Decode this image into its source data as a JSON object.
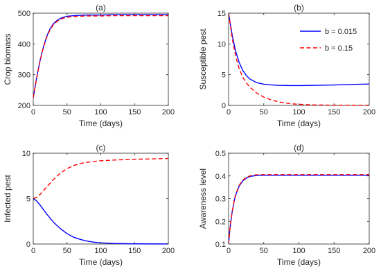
{
  "colors": {
    "series_b1": "#0000ff",
    "series_b2": "#ff0000",
    "axes": "#262626"
  },
  "legend": {
    "items": [
      {
        "label": "b = 0.015",
        "style": "solid"
      },
      {
        "label": "b = 0.15",
        "style": "dashed"
      }
    ],
    "placement": "top-right of panel (b)"
  },
  "chart_data": [
    {
      "type": "line",
      "title": "(a)",
      "xlabel": "Time (days)",
      "ylabel": "Crop biomass",
      "xlim": [
        0,
        200
      ],
      "ylim": [
        200,
        500
      ],
      "xticks": [
        0,
        50,
        100,
        150,
        200
      ],
      "yticks": [
        200,
        300,
        400,
        500
      ],
      "grid": false,
      "series": [
        {
          "style": "solid",
          "color": "#0000ff",
          "x": [
            0,
            5,
            10,
            15,
            20,
            25,
            30,
            35,
            40,
            45,
            50,
            60,
            70,
            80,
            100,
            120,
            150,
            200
          ],
          "y": [
            225,
            290,
            345,
            390,
            425,
            450,
            466,
            476,
            483,
            487,
            490,
            492,
            493,
            494,
            494,
            495,
            495,
            495
          ]
        },
        {
          "style": "dashed",
          "color": "#ff0000",
          "x": [
            0,
            5,
            10,
            15,
            20,
            25,
            30,
            35,
            40,
            45,
            50,
            60,
            70,
            80,
            100,
            120,
            150,
            200
          ],
          "y": [
            225,
            288,
            343,
            388,
            422,
            447,
            463,
            473,
            480,
            484,
            487,
            489,
            490,
            491,
            491,
            492,
            492,
            492
          ]
        }
      ]
    },
    {
      "type": "line",
      "title": "(b)",
      "xlabel": "Time (days)",
      "ylabel": "Susceptible pest",
      "xlim": [
        0,
        200
      ],
      "ylim": [
        0,
        15
      ],
      "xticks": [
        0,
        50,
        100,
        150,
        200
      ],
      "yticks": [
        0,
        5,
        10,
        15
      ],
      "grid": false,
      "legend": true,
      "series": [
        {
          "name": "b = 0.015",
          "style": "solid",
          "color": "#0000ff",
          "x": [
            0,
            5,
            10,
            15,
            20,
            25,
            30,
            40,
            50,
            60,
            70,
            80,
            90,
            100,
            120,
            150,
            175,
            200
          ],
          "y": [
            15,
            11.5,
            8.8,
            7.0,
            5.7,
            4.9,
            4.3,
            3.7,
            3.45,
            3.33,
            3.26,
            3.23,
            3.22,
            3.22,
            3.25,
            3.32,
            3.4,
            3.48
          ]
        },
        {
          "name": "b = 0.15",
          "style": "dashed",
          "color": "#ff0000",
          "x": [
            0,
            5,
            10,
            15,
            20,
            25,
            30,
            40,
            50,
            60,
            70,
            80,
            90,
            100,
            120,
            150,
            175,
            200
          ],
          "y": [
            15,
            11.0,
            8.0,
            6.0,
            4.6,
            3.7,
            3.0,
            2.0,
            1.35,
            0.9,
            0.6,
            0.4,
            0.26,
            0.17,
            0.08,
            0.03,
            0.01,
            0.01
          ]
        }
      ]
    },
    {
      "type": "line",
      "title": "(c)",
      "xlabel": "Time (days)",
      "ylabel": "Infected pest",
      "xlim": [
        0,
        200
      ],
      "ylim": [
        0,
        10
      ],
      "xticks": [
        0,
        50,
        100,
        150,
        200
      ],
      "yticks": [
        0,
        5,
        10
      ],
      "grid": false,
      "series": [
        {
          "style": "solid",
          "color": "#0000ff",
          "x": [
            0,
            5,
            10,
            15,
            20,
            30,
            40,
            50,
            60,
            70,
            80,
            90,
            100,
            120,
            150,
            200
          ],
          "y": [
            5,
            4.75,
            4.3,
            3.8,
            3.3,
            2.4,
            1.7,
            1.15,
            0.75,
            0.5,
            0.32,
            0.2,
            0.13,
            0.06,
            0.02,
            0.01
          ]
        },
        {
          "style": "dashed",
          "color": "#ff0000",
          "x": [
            0,
            5,
            10,
            15,
            20,
            30,
            40,
            50,
            60,
            70,
            80,
            90,
            100,
            120,
            150,
            200
          ],
          "y": [
            5,
            5.15,
            5.45,
            5.85,
            6.3,
            7.1,
            7.8,
            8.3,
            8.65,
            8.87,
            9.0,
            9.1,
            9.17,
            9.25,
            9.33,
            9.42
          ]
        }
      ]
    },
    {
      "type": "line",
      "title": "(d)",
      "xlabel": "Time (days)",
      "ylabel": "Awareness level",
      "xlim": [
        0,
        200
      ],
      "ylim": [
        0.1,
        0.5
      ],
      "xticks": [
        0,
        50,
        100,
        150,
        200
      ],
      "yticks": [
        0.1,
        0.2,
        0.3,
        0.4,
        0.5
      ],
      "grid": false,
      "series": [
        {
          "style": "solid",
          "color": "#0000ff",
          "x": [
            0,
            2,
            5,
            8,
            10,
            15,
            20,
            25,
            30,
            35,
            40,
            50,
            60,
            80,
            100,
            150,
            200
          ],
          "y": [
            0.1,
            0.17,
            0.24,
            0.29,
            0.315,
            0.355,
            0.378,
            0.39,
            0.397,
            0.4,
            0.402,
            0.403,
            0.403,
            0.403,
            0.403,
            0.403,
            0.403
          ]
        },
        {
          "style": "dashed",
          "color": "#ff0000",
          "x": [
            0,
            2,
            5,
            8,
            10,
            15,
            20,
            25,
            30,
            35,
            40,
            50,
            60,
            80,
            100,
            150,
            200
          ],
          "y": [
            0.1,
            0.17,
            0.24,
            0.292,
            0.318,
            0.358,
            0.381,
            0.393,
            0.4,
            0.403,
            0.405,
            0.406,
            0.406,
            0.406,
            0.406,
            0.406,
            0.406
          ]
        }
      ]
    }
  ]
}
